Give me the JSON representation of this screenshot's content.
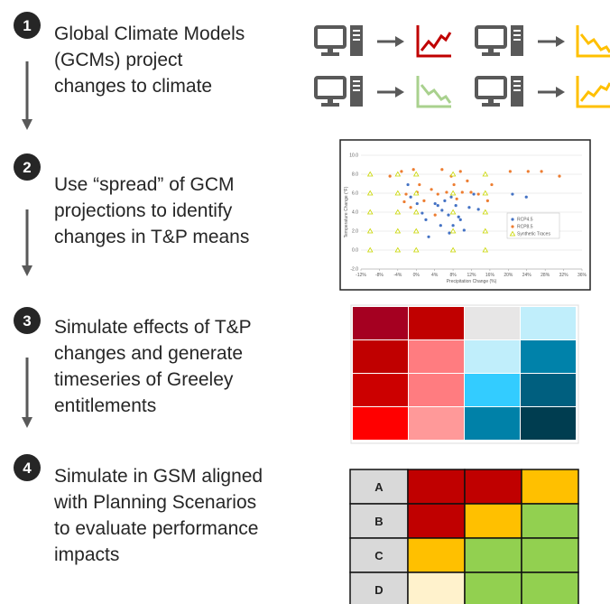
{
  "steps": [
    {
      "number": "1",
      "lines": [
        "Global Climate Models",
        "(GCMs) project",
        "changes to climate"
      ]
    },
    {
      "number": "2",
      "lines": [
        "Use “spread” of GCM",
        "projections to identify",
        "changes in T&P means"
      ]
    },
    {
      "number": "3",
      "lines": [
        "Simulate effects of T&P",
        "changes and generate",
        "timeseries of Greeley",
        "entitlements"
      ]
    },
    {
      "number": "4",
      "lines": [
        "Simulate in GSM aligned",
        "with Planning Scenarios",
        "to evaluate performance",
        "impacts"
      ]
    }
  ],
  "scatter": {
    "type": "scatter",
    "xlabel": "Precipitation Change (%)",
    "ylabel": "Temperature Change (°F)",
    "xlim": [
      -12,
      36
    ],
    "ylim": [
      -2,
      10
    ],
    "xticks": [
      {
        "value": -12,
        "label": "-12%"
      },
      {
        "value": -8,
        "label": "-8%"
      },
      {
        "value": -4,
        "label": "-4%"
      },
      {
        "value": 0,
        "label": "0%"
      },
      {
        "value": 4,
        "label": "4%"
      },
      {
        "value": 8,
        "label": "8%"
      },
      {
        "value": 12,
        "label": "12%"
      },
      {
        "value": 16,
        "label": "16%"
      },
      {
        "value": 20,
        "label": "20%"
      },
      {
        "value": 24,
        "label": "24%"
      },
      {
        "value": 28,
        "label": "28%"
      },
      {
        "value": 32,
        "label": "32%"
      },
      {
        "value": 36,
        "label": "36%"
      }
    ],
    "yticks": [
      {
        "value": -2,
        "label": "-2.0"
      },
      {
        "value": 0,
        "label": "0.0"
      },
      {
        "value": 2,
        "label": "2.0"
      },
      {
        "value": 4,
        "label": "4.0"
      },
      {
        "value": 6,
        "label": "6.0"
      },
      {
        "value": 8,
        "label": "8.0"
      },
      {
        "value": 10,
        "label": "10.0"
      }
    ],
    "grid": true,
    "series": [
      {
        "name": "RCP4.5",
        "color": "#4472c4",
        "marker": "circle",
        "x": [
          -1.8,
          -1.2,
          0.2,
          1.3,
          2.1,
          2.7,
          4.1,
          4.7,
          5.6,
          6.2,
          7.0,
          7.6,
          8.0,
          8.6,
          9.6,
          10.4,
          11.5,
          12.5,
          13.5,
          20.9,
          23.9,
          5.3,
          7.2,
          9.2
        ],
        "y": [
          6.9,
          5.6,
          4.9,
          3.9,
          3.2,
          1.4,
          4.9,
          4.7,
          4.2,
          5.2,
          3.7,
          5.6,
          2.6,
          4.7,
          3.2,
          2.1,
          4.5,
          5.9,
          4.3,
          5.9,
          5.6,
          2.6,
          1.8,
          3.5
        ]
      },
      {
        "name": "RCP8.5",
        "color": "#ed7d31",
        "marker": "circle",
        "x": [
          -5.7,
          -3.2,
          -0.6,
          0.2,
          -2.2,
          -1.2,
          0.7,
          1.7,
          3.3,
          4.1,
          5.6,
          6.6,
          7.6,
          8.2,
          8.8,
          9.6,
          10.0,
          11.1,
          11.9,
          13.5,
          16.4,
          20.4,
          24.3,
          27.2,
          31.1,
          -2.6,
          4.7,
          15.5
        ],
        "y": [
          7.8,
          8.3,
          8.5,
          6.1,
          5.9,
          4.5,
          6.9,
          5.2,
          6.4,
          3.7,
          8.5,
          6.1,
          7.8,
          6.9,
          5.4,
          8.3,
          6.1,
          7.3,
          6.1,
          5.9,
          6.9,
          8.3,
          8.3,
          8.3,
          7.8,
          5.1,
          5.9,
          5.2
        ]
      },
      {
        "name": "Synthetic Traces",
        "color": "#c9d600",
        "marker": "triangle",
        "x": [
          -10,
          -4,
          0,
          8,
          15,
          -10,
          -4,
          0,
          8,
          15,
          -10,
          -4,
          0,
          8,
          15,
          -10,
          -4,
          0,
          8,
          15,
          -10,
          -4,
          0,
          8,
          15
        ],
        "y": [
          8,
          8,
          8,
          8,
          8,
          6,
          6,
          6,
          6,
          6,
          4,
          4,
          4,
          4,
          4,
          2,
          2,
          2,
          2,
          2,
          0,
          0,
          0,
          0,
          0
        ]
      }
    ]
  },
  "heatmap": {
    "colors": [
      [
        "#a50021",
        "#c00000",
        "#e7e6e6",
        "#c0eefb"
      ],
      [
        "#c00000",
        "#ff7c80",
        "#c0eefb",
        "#0082aa"
      ],
      [
        "#cc0000",
        "#ff7c80",
        "#33ccff",
        "#005f7f"
      ],
      [
        "#ff0000",
        "#ff9999",
        "#0081a8",
        "#003d50"
      ]
    ]
  },
  "table": {
    "rows": [
      {
        "label": "A",
        "colors": [
          "#c00000",
          "#c00000",
          "#ffc000"
        ]
      },
      {
        "label": "B",
        "colors": [
          "#c00000",
          "#ffc000",
          "#92d050"
        ]
      },
      {
        "label": "C",
        "colors": [
          "#ffc000",
          "#92d050",
          "#92d050"
        ]
      },
      {
        "label": "D",
        "colors": [
          "#fff2cc",
          "#92d050",
          "#92d050"
        ]
      }
    ]
  }
}
